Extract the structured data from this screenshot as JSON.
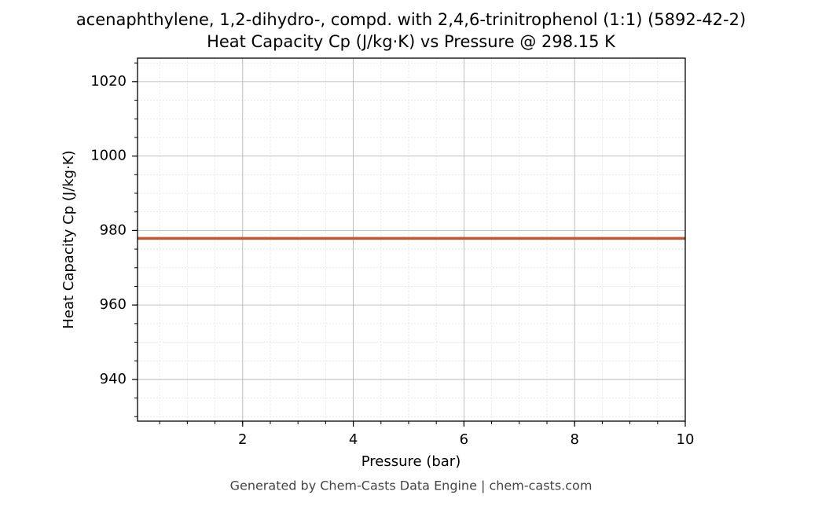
{
  "chart_data": {
    "type": "line",
    "title": "acenaphthylene, 1,2-dihydro-, compd. with 2,4,6-trinitrophenol (1:1) (5892-42-2)",
    "subtitle": "Heat Capacity Cp (J/kg·K) vs Pressure @ 298.15 K",
    "x_label": "Pressure (bar)",
    "y_label": "Heat Capacity Cp (J/kg·K)",
    "footer": "Generated by Chem-Casts Data Engine | chem-casts.com",
    "x": [
      0.1,
      10
    ],
    "series": [
      {
        "color": "#c8552a",
        "values": [
          977.9,
          977.9
        ]
      }
    ],
    "xlim": [
      0.1,
      10
    ],
    "xticks": [
      2,
      4,
      6,
      8,
      10
    ],
    "ylim": [
      928.8,
      1026.3
    ],
    "yticks": [
      940,
      960,
      980,
      1000,
      1020
    ],
    "grid": true,
    "minor_grid": true
  }
}
